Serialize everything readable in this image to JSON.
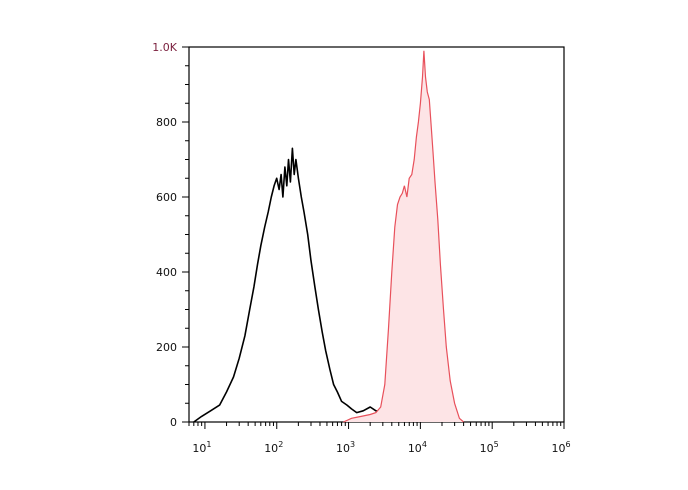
{
  "chart_data": {
    "type": "histogram-overlay",
    "x_scale": "log",
    "xlim": [
      6,
      1000000
    ],
    "ylim": [
      0,
      1000
    ],
    "x_tick_labels": [
      {
        "base": "10",
        "exp": "1",
        "value": 10
      },
      {
        "base": "10",
        "exp": "2",
        "value": 100
      },
      {
        "base": "10",
        "exp": "3",
        "value": 1000
      },
      {
        "base": "10",
        "exp": "4",
        "value": 10000
      },
      {
        "base": "10",
        "exp": "5",
        "value": 100000
      },
      {
        "base": "10",
        "exp": "6",
        "value": 1000000
      }
    ],
    "y_tick_labels": [
      {
        "label": "0",
        "value": 0
      },
      {
        "label": "200",
        "value": 200
      },
      {
        "label": "400",
        "value": 400
      },
      {
        "label": "600",
        "value": 600
      },
      {
        "label": "800",
        "value": 800
      },
      {
        "label": "1.0K",
        "value": 1000
      }
    ],
    "top_label_color": "#7a1f3d",
    "series": [
      {
        "style": "outline",
        "color": "#000000",
        "points": [
          [
            7,
            0
          ],
          [
            9,
            15
          ],
          [
            12,
            30
          ],
          [
            16,
            45
          ],
          [
            20,
            80
          ],
          [
            25,
            120
          ],
          [
            30,
            170
          ],
          [
            36,
            230
          ],
          [
            42,
            300
          ],
          [
            48,
            360
          ],
          [
            54,
            420
          ],
          [
            60,
            470
          ],
          [
            68,
            520
          ],
          [
            76,
            560
          ],
          [
            84,
            600
          ],
          [
            92,
            630
          ],
          [
            100,
            650
          ],
          [
            108,
            620
          ],
          [
            115,
            660
          ],
          [
            122,
            600
          ],
          [
            130,
            680
          ],
          [
            138,
            630
          ],
          [
            146,
            700
          ],
          [
            155,
            640
          ],
          [
            165,
            730
          ],
          [
            175,
            660
          ],
          [
            185,
            700
          ],
          [
            200,
            650
          ],
          [
            220,
            600
          ],
          [
            240,
            560
          ],
          [
            270,
            500
          ],
          [
            300,
            430
          ],
          [
            340,
            360
          ],
          [
            380,
            300
          ],
          [
            430,
            240
          ],
          [
            480,
            190
          ],
          [
            550,
            140
          ],
          [
            620,
            100
          ],
          [
            700,
            80
          ],
          [
            800,
            55
          ],
          [
            950,
            45
          ],
          [
            1100,
            35
          ],
          [
            1300,
            25
          ],
          [
            1600,
            30
          ],
          [
            2000,
            40
          ],
          [
            2400,
            30
          ],
          [
            3000,
            25
          ],
          [
            3600,
            40
          ],
          [
            4300,
            30
          ],
          [
            5200,
            20
          ],
          [
            6500,
            12
          ],
          [
            8000,
            5
          ],
          [
            9000,
            0
          ]
        ]
      },
      {
        "style": "filled",
        "color": "#e8505b",
        "fill": "#fde4e6",
        "points": [
          [
            850,
            0
          ],
          [
            1100,
            10
          ],
          [
            1500,
            15
          ],
          [
            2000,
            20
          ],
          [
            2400,
            25
          ],
          [
            2800,
            40
          ],
          [
            3200,
            100
          ],
          [
            3600,
            250
          ],
          [
            4000,
            400
          ],
          [
            4400,
            520
          ],
          [
            4800,
            580
          ],
          [
            5200,
            600
          ],
          [
            5600,
            610
          ],
          [
            6000,
            630
          ],
          [
            6500,
            600
          ],
          [
            7000,
            650
          ],
          [
            7600,
            660
          ],
          [
            8200,
            700
          ],
          [
            8800,
            760
          ],
          [
            9400,
            800
          ],
          [
            10000,
            850
          ],
          [
            10700,
            920
          ],
          [
            11200,
            990
          ],
          [
            11800,
            920
          ],
          [
            12500,
            880
          ],
          [
            13300,
            860
          ],
          [
            14000,
            800
          ],
          [
            15000,
            720
          ],
          [
            16000,
            640
          ],
          [
            17500,
            540
          ],
          [
            19000,
            420
          ],
          [
            21000,
            300
          ],
          [
            23000,
            200
          ],
          [
            26000,
            110
          ],
          [
            30000,
            50
          ],
          [
            35000,
            10
          ],
          [
            40000,
            0
          ]
        ]
      }
    ]
  }
}
